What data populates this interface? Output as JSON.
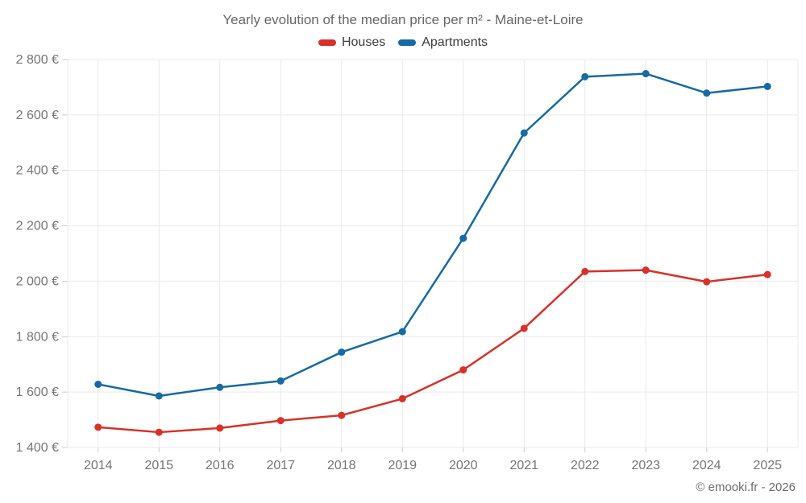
{
  "attribution": "© emooki.fr - 2026",
  "colors": {
    "houses": "#d8302a",
    "apartments": "#176aa3",
    "grid": "#e9e9e9",
    "tick": "#cccccc",
    "axis_text": "#757575",
    "title_text": "#666666",
    "footer_text": "#6b6b6b"
  },
  "chart_data": {
    "type": "line",
    "title": "Yearly evolution of the median price per m² - Maine-et-Loire",
    "categories": [
      "2014",
      "2015",
      "2016",
      "2017",
      "2018",
      "2019",
      "2020",
      "2021",
      "2022",
      "2023",
      "2024",
      "2025"
    ],
    "series": [
      {
        "name": "Houses",
        "color": "#d8302a",
        "values": [
          1473,
          1455,
          1470,
          1497,
          1516,
          1576,
          1680,
          1830,
          2035,
          2040,
          1998,
          2024
        ]
      },
      {
        "name": "Apartments",
        "color": "#176aa3",
        "values": [
          1628,
          1586,
          1617,
          1640,
          1744,
          1818,
          2155,
          2535,
          2738,
          2749,
          2679,
          2703
        ]
      }
    ],
    "xlabel": "",
    "ylabel": "",
    "ylim": [
      1400,
      2800
    ],
    "y_ticks": [
      {
        "value": 1400,
        "label": "1 400 €"
      },
      {
        "value": 1600,
        "label": "1 600 €"
      },
      {
        "value": 1800,
        "label": "1 800 €"
      },
      {
        "value": 2000,
        "label": "2 000 €"
      },
      {
        "value": 2200,
        "label": "2 200 €"
      },
      {
        "value": 2400,
        "label": "2 400 €"
      },
      {
        "value": 2600,
        "label": "2 600 €"
      },
      {
        "value": 2800,
        "label": "2 800 €"
      }
    ],
    "grid": true,
    "legend_position": "top",
    "marker_radius": 4.5,
    "line_width": 2.5
  }
}
